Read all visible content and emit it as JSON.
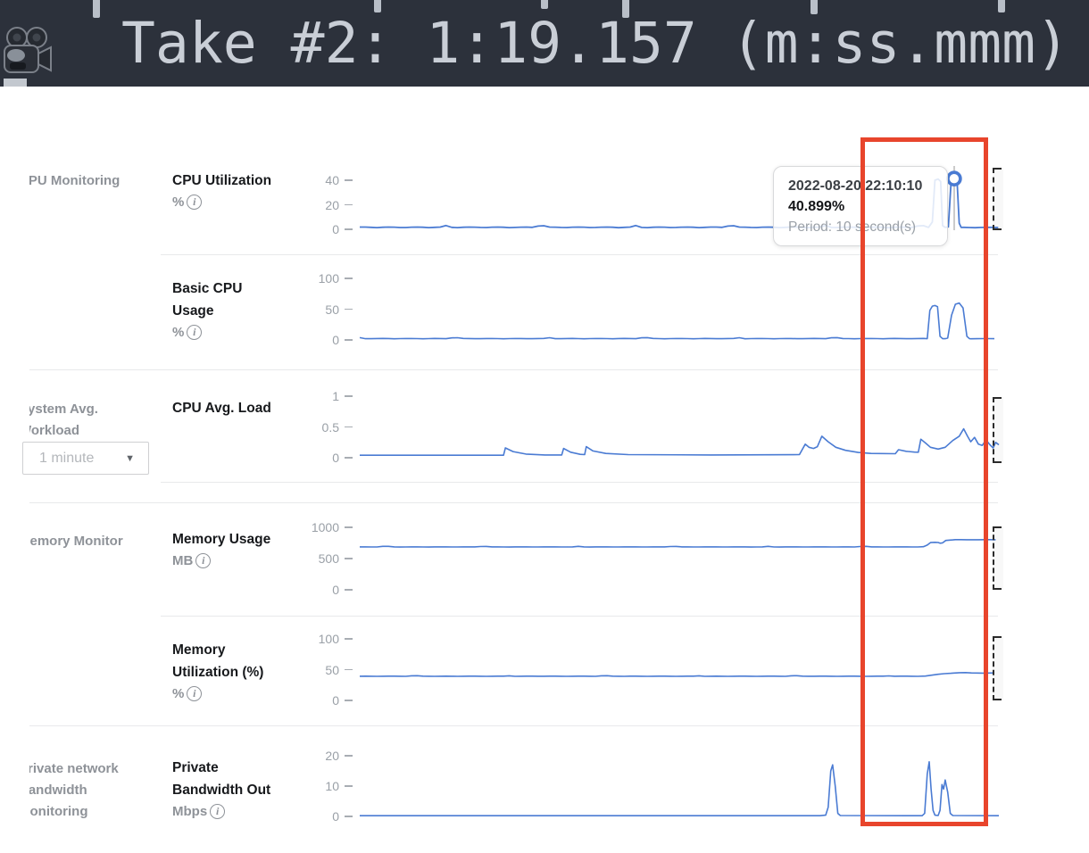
{
  "banner": {
    "text": "Take #2: 1:19.157 (m:ss.mmm)",
    "icon": "movie-camera"
  },
  "sidebar": {
    "sections": [
      {
        "label": "CPU Monitoring"
      },
      {
        "label": "System Avg.\nWorkload",
        "dropdown_value": "1 minute"
      },
      {
        "label": "Memory Monitor"
      },
      {
        "label": "Private network\nBandwidth\nMonitoring"
      }
    ]
  },
  "tooltip": {
    "timestamp": "2022-08-20 22:10:10",
    "value": "40.899%",
    "period": "Period: 10 second(s)"
  },
  "charts": [
    {
      "title": "CPU Utilization",
      "unit": "%",
      "ticks": [
        {
          "v": 0,
          "label": "0"
        },
        {
          "v": 20,
          "label": "20"
        },
        {
          "v": 40,
          "label": "40"
        }
      ],
      "segments": [
        {
          "noise": {
            "from": 0,
            "to": 0.885,
            "base": 1.1,
            "amp": 0.9,
            "seed": 3
          }
        },
        {
          "pts": [
            [
              0.89,
              1.5
            ],
            [
              0.896,
              6
            ],
            [
              0.9,
              40
            ],
            [
              0.905,
              41
            ],
            [
              0.909,
              39
            ],
            [
              0.912,
              3
            ],
            [
              0.916,
              1.5
            ],
            [
              0.921,
              2
            ],
            [
              0.9255,
              40.9
            ],
            [
              0.93,
              41.3
            ],
            [
              0.9345,
              40.9
            ],
            [
              0.938,
              5
            ],
            [
              0.941,
              1.5
            ]
          ]
        },
        {
          "noise": {
            "from": 0.945,
            "to": 1,
            "base": 1.2,
            "amp": 0.5,
            "seed": 9
          }
        }
      ],
      "marker": {
        "x": 0.93,
        "v": 41.3
      }
    },
    {
      "title": "Basic CPU\nUsage",
      "unit": "%",
      "ticks": [
        {
          "v": 0,
          "label": "0"
        },
        {
          "v": 50,
          "label": "50"
        },
        {
          "v": 100,
          "label": "100"
        }
      ],
      "segments": [
        {
          "noise": {
            "from": 0,
            "to": 0.885,
            "base": 1.6,
            "amp": 1.0,
            "seed": 5
          }
        },
        {
          "pts": [
            [
              0.888,
              2
            ],
            [
              0.892,
              48
            ],
            [
              0.896,
              55
            ],
            [
              0.9,
              56
            ],
            [
              0.904,
              54
            ],
            [
              0.908,
              6
            ],
            [
              0.912,
              2
            ],
            [
              0.916,
              2
            ],
            [
              0.92,
              3
            ],
            [
              0.926,
              40
            ],
            [
              0.932,
              58
            ],
            [
              0.938,
              60
            ],
            [
              0.944,
              52
            ],
            [
              0.95,
              6
            ],
            [
              0.954,
              2
            ]
          ]
        },
        {
          "noise": {
            "from": 0.957,
            "to": 1,
            "base": 1.6,
            "amp": 0.8,
            "seed": 7
          }
        }
      ]
    },
    {
      "title": "CPU Avg. Load",
      "unit": "",
      "ticks": [
        {
          "v": 0,
          "label": "0"
        },
        {
          "v": 0.5,
          "label": "0.5"
        },
        {
          "v": 1,
          "label": "1"
        }
      ],
      "segments": [
        {
          "pts": [
            [
              0,
              0.04
            ],
            [
              0.225,
              0.04
            ],
            [
              0.228,
              0.16
            ],
            [
              0.24,
              0.1
            ],
            [
              0.26,
              0.06
            ],
            [
              0.29,
              0.045
            ],
            [
              0.316,
              0.045
            ],
            [
              0.319,
              0.15
            ],
            [
              0.33,
              0.09
            ],
            [
              0.345,
              0.055
            ],
            [
              0.352,
              0.05
            ],
            [
              0.3545,
              0.18
            ],
            [
              0.365,
              0.11
            ],
            [
              0.385,
              0.07
            ],
            [
              0.42,
              0.05
            ],
            [
              0.55,
              0.045
            ],
            [
              0.688,
              0.05
            ],
            [
              0.697,
              0.22
            ],
            [
              0.703,
              0.17
            ],
            [
              0.71,
              0.15
            ],
            [
              0.716,
              0.18
            ],
            [
              0.723,
              0.35
            ],
            [
              0.733,
              0.26
            ],
            [
              0.745,
              0.17
            ],
            [
              0.76,
              0.12
            ],
            [
              0.78,
              0.085
            ],
            [
              0.8,
              0.07
            ],
            [
              0.838,
              0.065
            ],
            [
              0.843,
              0.13
            ],
            [
              0.855,
              0.105
            ],
            [
              0.868,
              0.092
            ],
            [
              0.874,
              0.09
            ],
            [
              0.878,
              0.3
            ],
            [
              0.885,
              0.24
            ],
            [
              0.893,
              0.17
            ],
            [
              0.905,
              0.14
            ],
            [
              0.916,
              0.17
            ],
            [
              0.928,
              0.28
            ],
            [
              0.938,
              0.35
            ],
            [
              0.945,
              0.47
            ],
            [
              0.951,
              0.35
            ],
            [
              0.956,
              0.26
            ],
            [
              0.962,
              0.33
            ],
            [
              0.968,
              0.22
            ],
            [
              0.974,
              0.2
            ],
            [
              0.98,
              0.29
            ],
            [
              0.986,
              0.21
            ],
            [
              0.991,
              0.16
            ],
            [
              0.995,
              0.25
            ],
            [
              1,
              0.21
            ]
          ]
        }
      ]
    },
    {
      "title": "Memory Usage",
      "unit": "MB",
      "ticks": [
        {
          "v": 0,
          "label": "0"
        },
        {
          "v": 500,
          "label": "500"
        },
        {
          "v": 1000,
          "label": "1000"
        }
      ],
      "segments": [
        {
          "noise": {
            "from": 0,
            "to": 0.878,
            "base": 683,
            "amp": 6,
            "seed": 11
          }
        },
        {
          "pts": [
            [
              0.882,
              690
            ],
            [
              0.888,
              715
            ],
            [
              0.893,
              755
            ],
            [
              0.9,
              760
            ],
            [
              0.905,
              757
            ],
            [
              0.908,
              746
            ],
            [
              0.912,
              752
            ],
            [
              0.917,
              790
            ],
            [
              0.928,
              799
            ]
          ]
        },
        {
          "noise": {
            "from": 0.932,
            "to": 1,
            "base": 800,
            "amp": 3,
            "seed": 13
          }
        }
      ]
    },
    {
      "title": "Memory\nUtilization (%)",
      "unit": "%",
      "ticks": [
        {
          "v": 0,
          "label": "0"
        },
        {
          "v": 50,
          "label": "50"
        },
        {
          "v": 100,
          "label": "100"
        }
      ],
      "segments": [
        {
          "noise": {
            "from": 0,
            "to": 0.878,
            "base": 39,
            "amp": 0.5,
            "seed": 17
          }
        },
        {
          "pts": [
            [
              0.885,
              39.5
            ],
            [
              0.895,
              41
            ],
            [
              0.905,
              42.5
            ],
            [
              0.915,
              43.5
            ],
            [
              0.925,
              44
            ]
          ]
        },
        {
          "noise": {
            "from": 0.93,
            "to": 1,
            "base": 44.3,
            "amp": 0.4,
            "seed": 19
          }
        }
      ]
    },
    {
      "title": "Private\nBandwidth Out",
      "unit": "Mbps",
      "ticks": [
        {
          "v": 0,
          "label": "0"
        },
        {
          "v": 10,
          "label": "10"
        },
        {
          "v": 20,
          "label": "20"
        }
      ],
      "segments": [
        {
          "pts": [
            [
              0,
              0.25
            ],
            [
              0.72,
              0.25
            ],
            [
              0.729,
              0.4
            ],
            [
              0.733,
              3
            ],
            [
              0.737,
              15
            ],
            [
              0.74,
              17
            ],
            [
              0.744,
              10
            ],
            [
              0.748,
              1
            ],
            [
              0.752,
              0.3
            ],
            [
              0.88,
              0.25
            ],
            [
              0.884,
              1
            ],
            [
              0.888,
              14
            ],
            [
              0.891,
              18
            ],
            [
              0.894,
              9
            ],
            [
              0.897,
              2
            ],
            [
              0.9,
              0.4
            ],
            [
              0.905,
              0.3
            ],
            [
              0.908,
              2
            ],
            [
              0.911,
              10.5
            ],
            [
              0.9135,
              9
            ],
            [
              0.916,
              12
            ],
            [
              0.92,
              8
            ],
            [
              0.924,
              1
            ],
            [
              0.928,
              0.3
            ],
            [
              1,
              0.25
            ]
          ]
        }
      ]
    }
  ],
  "colors": {
    "line_blue": "#4a7bd3",
    "annotation_red": "#e8452c",
    "topbar_bg": "#2c313b",
    "topbar_text": "#c9ced6"
  }
}
